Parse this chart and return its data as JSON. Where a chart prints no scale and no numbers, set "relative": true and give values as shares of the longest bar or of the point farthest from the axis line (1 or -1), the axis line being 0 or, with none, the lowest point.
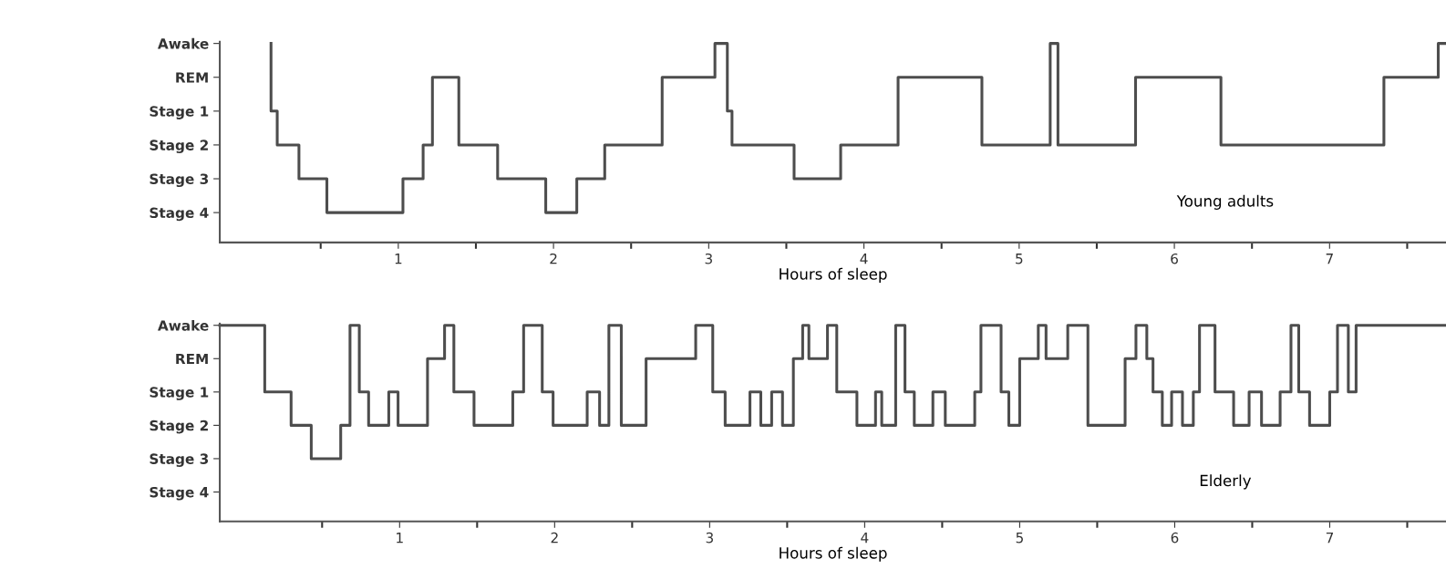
{
  "chart_data": [
    {
      "type": "step",
      "relative": true,
      "xlabel": "Hours of sleep",
      "annotations": [
        "Young adults"
      ],
      "xlim": [
        -0.15,
        7.75
      ],
      "xticks": [
        {
          "value": 0.5,
          "label": null
        },
        1,
        {
          "value": 1.5,
          "label": null
        },
        2,
        {
          "value": 2.5,
          "label": null
        },
        3,
        {
          "value": 3.5,
          "label": null
        },
        4,
        {
          "value": 4.5,
          "label": null
        },
        5,
        {
          "value": 5.5,
          "label": null
        },
        6,
        {
          "value": 6.5,
          "label": null
        },
        7,
        {
          "value": 7.5,
          "label": null
        }
      ],
      "y_categories": [
        "Awake",
        "REM",
        "Stage 1",
        "Stage 2",
        "Stage 3",
        "Stage 4"
      ],
      "grid": false,
      "legend": false,
      "series": [
        {
          "color": "#4d4d4d",
          "x": [
            0.18,
            0.18,
            0.22,
            0.36,
            0.54,
            1.03,
            1.16,
            1.22,
            1.39,
            1.64,
            1.95,
            2.15,
            2.33,
            2.7,
            3.04,
            3.12,
            3.15,
            3.55,
            3.85,
            4.22,
            4.76,
            5.2,
            5.25,
            5.75,
            6.3,
            7.35,
            7.7,
            7.75
          ],
          "values": [
            1,
            0.66,
            0.49,
            0.32,
            0.15,
            0.32,
            0.49,
            0.83,
            0.49,
            0.32,
            0.15,
            0.32,
            0.49,
            0.83,
            1,
            0.66,
            0.49,
            0.32,
            0.49,
            0.83,
            0.49,
            1,
            0.49,
            0.83,
            0.49,
            0.83,
            1,
            1
          ]
        }
      ]
    },
    {
      "type": "step",
      "relative": true,
      "xlabel": "Hours of sleep",
      "annotations": [
        "Elderly"
      ],
      "xlim": [
        -0.16,
        7.75
      ],
      "xticks": [
        {
          "value": 0.5,
          "label": null
        },
        1,
        {
          "value": 1.5,
          "label": null
        },
        2,
        {
          "value": 2.5,
          "label": null
        },
        3,
        {
          "value": 3.5,
          "label": null
        },
        4,
        {
          "value": 4.5,
          "label": null
        },
        5,
        {
          "value": 5.5,
          "label": null
        },
        6,
        {
          "value": 6.5,
          "label": null
        },
        7,
        {
          "value": 7.5,
          "label": null
        }
      ],
      "y_categories": [
        "Awake",
        "REM",
        "Stage 1",
        "Stage 2",
        "Stage 3",
        "Stage 4"
      ],
      "grid": false,
      "legend": false,
      "series": [
        {
          "color": "#4d4d4d",
          "x": [
            -0.16,
            0.13,
            0.3,
            0.43,
            0.62,
            0.68,
            0.74,
            0.8,
            0.93,
            0.99,
            1.18,
            1.29,
            1.35,
            1.48,
            1.73,
            1.8,
            1.92,
            1.99,
            2.21,
            2.29,
            2.35,
            2.43,
            2.59,
            2.91,
            3.02,
            3.1,
            3.26,
            3.33,
            3.4,
            3.47,
            3.54,
            3.6,
            3.64,
            3.76,
            3.82,
            3.95,
            4.07,
            4.11,
            4.2,
            4.26,
            4.32,
            4.44,
            4.52,
            4.71,
            4.75,
            4.88,
            4.93,
            5.0,
            5.12,
            5.17,
            5.31,
            5.44,
            5.68,
            5.75,
            5.82,
            5.86,
            5.92,
            5.98,
            6.05,
            6.12,
            6.16,
            6.26,
            6.38,
            6.48,
            6.56,
            6.68,
            6.75,
            6.8,
            6.87,
            7.0,
            7.05,
            7.12,
            7.17,
            7.75
          ],
          "values": [
            1,
            0.66,
            0.49,
            0.32,
            0.49,
            1,
            0.66,
            0.49,
            0.66,
            0.49,
            0.83,
            1,
            0.66,
            0.49,
            0.66,
            1,
            0.66,
            0.49,
            0.66,
            0.49,
            1,
            0.49,
            0.83,
            1,
            0.66,
            0.49,
            0.66,
            0.49,
            0.66,
            0.49,
            0.83,
            1,
            0.83,
            1,
            0.66,
            0.49,
            0.66,
            0.49,
            1,
            0.66,
            0.49,
            0.66,
            0.49,
            0.66,
            1,
            0.66,
            0.49,
            0.83,
            1,
            0.83,
            1,
            0.49,
            0.83,
            1,
            0.83,
            0.66,
            0.49,
            0.66,
            0.49,
            0.66,
            1,
            0.66,
            0.49,
            0.66,
            0.49,
            0.66,
            1,
            0.66,
            0.49,
            0.66,
            1,
            0.66,
            1,
            1
          ]
        }
      ]
    }
  ]
}
